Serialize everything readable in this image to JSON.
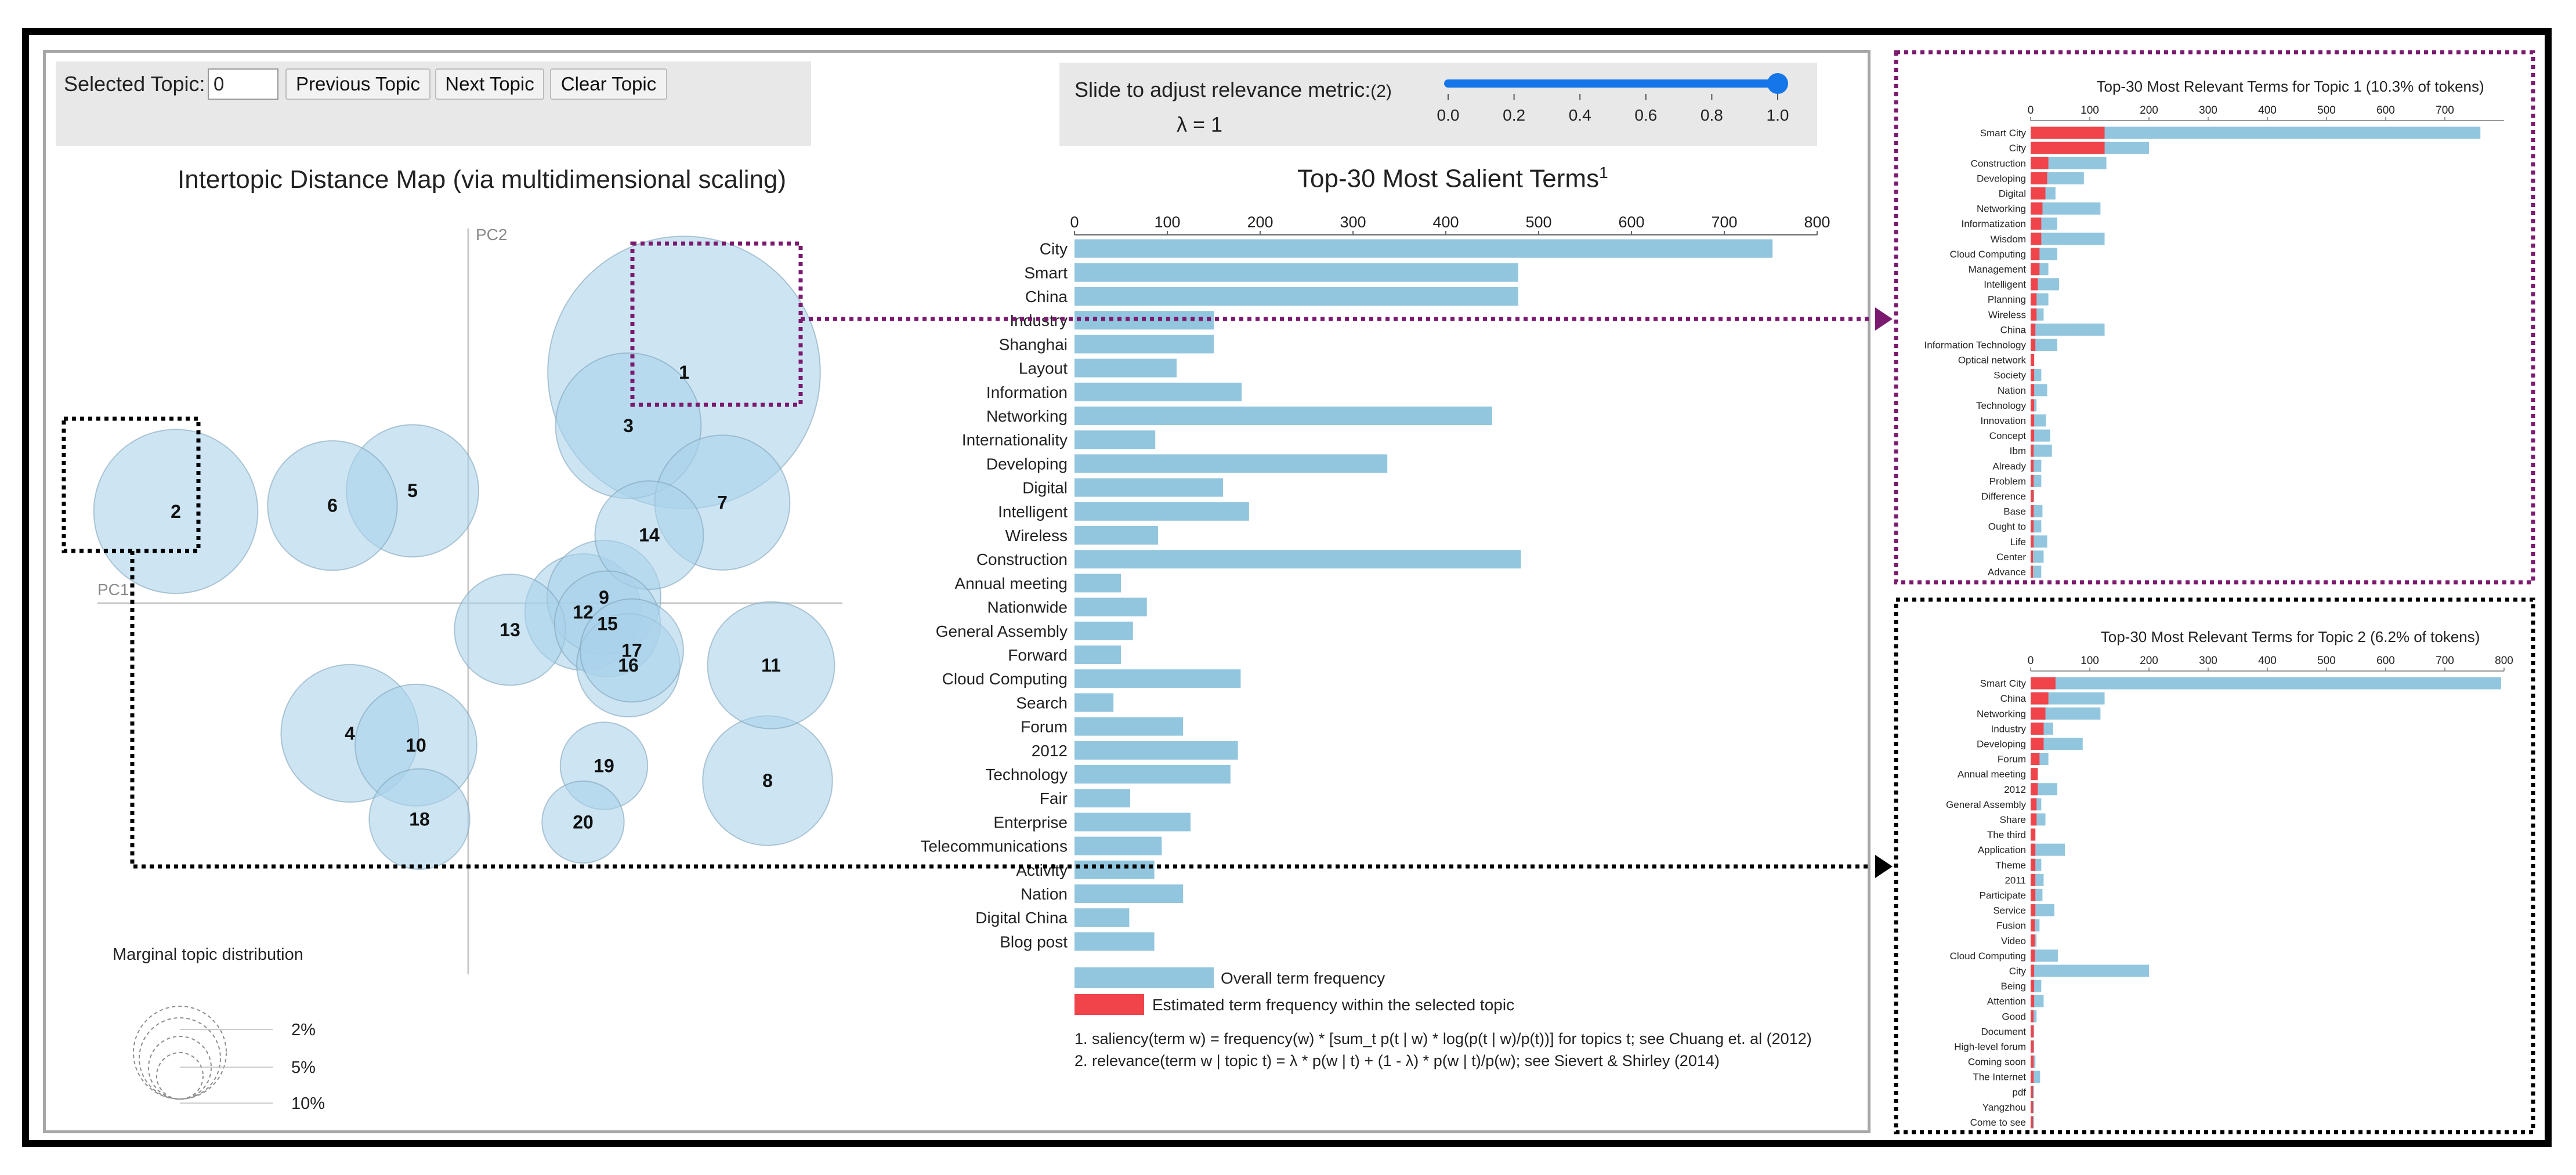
{
  "controls": {
    "selected_topic_label": "Selected Topic:",
    "selected_topic_value": "0",
    "prev_button": "Previous Topic",
    "next_button": "Next Topic",
    "clear_button": "Clear Topic",
    "slider_label": "Slide to adjust relevance metric:",
    "slider_footnote": "(2)",
    "lambda_text": "λ = 1",
    "slider_value": 1.0,
    "slider_ticks": [
      "0.0",
      "0.2",
      "0.4",
      "0.6",
      "0.8",
      "1.0"
    ]
  },
  "colors": {
    "overall": "#92c6df",
    "estimated": "#f0434a",
    "bubble_fill": "#a9d3ea",
    "bubble_stroke": "#7a9fb5",
    "slider": "#1476e8",
    "topic1_box": "#7b1a6f",
    "topic2_box": "#000000"
  },
  "chart_data": [
    {
      "type": "scatter",
      "title": "Intertopic Distance Map (via multidimensional scaling)",
      "xlabel": "PC1",
      "ylabel": "PC2",
      "size_legend": {
        "title": "Marginal topic distribution",
        "levels": [
          "2%",
          "5%",
          "10%"
        ]
      },
      "points": [
        {
          "topic": "1",
          "x": 0.62,
          "y": 0.78,
          "size": 10.3
        },
        {
          "topic": "2",
          "x": -0.84,
          "y": 0.31,
          "size": 6.2
        },
        {
          "topic": "3",
          "x": 0.46,
          "y": 0.6,
          "size": 5.5
        },
        {
          "topic": "4",
          "x": -0.34,
          "y": -0.44,
          "size": 5.2
        },
        {
          "topic": "5",
          "x": -0.16,
          "y": 0.38,
          "size": 5.0
        },
        {
          "topic": "6",
          "x": -0.39,
          "y": 0.33,
          "size": 4.9
        },
        {
          "topic": "7",
          "x": 0.73,
          "y": 0.34,
          "size": 5.1
        },
        {
          "topic": "8",
          "x": 0.86,
          "y": -0.6,
          "size": 4.9
        },
        {
          "topic": "9",
          "x": 0.39,
          "y": 0.02,
          "size": 4.3
        },
        {
          "topic": "10",
          "x": -0.15,
          "y": -0.48,
          "size": 4.6
        },
        {
          "topic": "11",
          "x": 0.87,
          "y": -0.21,
          "size": 4.8
        },
        {
          "topic": "12",
          "x": 0.33,
          "y": -0.03,
          "size": 4.4
        },
        {
          "topic": "13",
          "x": 0.12,
          "y": -0.09,
          "size": 4.2
        },
        {
          "topic": "14",
          "x": 0.52,
          "y": 0.23,
          "size": 4.1
        },
        {
          "topic": "15",
          "x": 0.4,
          "y": -0.07,
          "size": 4.0
        },
        {
          "topic": "16",
          "x": 0.46,
          "y": -0.21,
          "size": 3.9
        },
        {
          "topic": "17",
          "x": 0.47,
          "y": -0.16,
          "size": 3.9
        },
        {
          "topic": "18",
          "x": -0.14,
          "y": -0.73,
          "size": 3.8
        },
        {
          "topic": "19",
          "x": 0.39,
          "y": -0.55,
          "size": 3.3
        },
        {
          "topic": "20",
          "x": 0.33,
          "y": -0.74,
          "size": 3.1
        }
      ]
    },
    {
      "type": "bar",
      "orientation": "horizontal",
      "title": "Top-30 Most Salient Terms",
      "title_superscript": "1",
      "xlim": [
        0,
        800
      ],
      "xticks": [
        0,
        100,
        200,
        300,
        400,
        500,
        600,
        700,
        800
      ],
      "categories": [
        "City",
        "Smart",
        "China",
        "Industry",
        "Shanghai",
        "Layout",
        "Information",
        "Networking",
        "Internationality",
        "Developing",
        "Digital",
        "Intelligent",
        "Wireless",
        "Construction",
        "Annual meeting",
        "Nationwide",
        "General Assembly",
        "Forward",
        "Cloud Computing",
        "Search",
        "Forum",
        "2012",
        "Technology",
        "Fair",
        "Enterprise",
        "Telecommunications",
        "Activity",
        "Nation",
        "Digital China",
        "Blog post"
      ],
      "values": [
        752,
        478,
        478,
        150,
        150,
        110,
        180,
        450,
        87,
        337,
        160,
        188,
        90,
        481,
        50,
        78,
        63,
        50,
        179,
        42,
        117,
        176,
        168,
        60,
        125,
        94,
        86,
        117,
        59,
        86
      ],
      "legend": [
        "Overall term frequency",
        "Estimated term frequency within the selected topic"
      ],
      "footnotes": [
        "1. saliency(term w) = frequency(w) * [sum_t p(t | w) * log(p(t | w)/p(t))] for topics t; see Chuang et. al (2012)",
        "2. relevance(term w | topic t) = λ * p(w | t) + (1 - λ) * p(w | t)/p(w); see Sievert & Shirley (2014)"
      ]
    },
    {
      "type": "bar",
      "orientation": "horizontal",
      "title": "Top-30 Most Relevant Terms for Topic 1 (10.3% of tokens)",
      "xlim": [
        0,
        800
      ],
      "xticks": [
        0,
        100,
        200,
        300,
        400,
        500,
        600,
        700
      ],
      "categories": [
        "Smart City",
        "City",
        "Construction",
        "Developing",
        "Digital",
        "Networking",
        "Informatization",
        "Wisdom",
        "Cloud Computing",
        "Management",
        "Intelligent",
        "Planning",
        "Wireless",
        "China",
        "Information Technology",
        "Optical network",
        "Society",
        "Nation",
        "Technology",
        "Innovation",
        "Concept",
        "Ibm",
        "Already",
        "Problem",
        "Difference",
        "Base",
        "Ought to",
        "Life",
        "Center",
        "Advance"
      ],
      "series": [
        {
          "name": "Overall term frequency",
          "values": [
            760,
            200,
            128,
            90,
            42,
            118,
            45,
            125,
            45,
            30,
            48,
            30,
            22,
            125,
            45,
            6,
            18,
            28,
            10,
            26,
            33,
            36,
            18,
            18,
            6,
            20,
            18,
            28,
            22,
            18
          ]
        },
        {
          "name": "Estimated term frequency within the selected topic",
          "values": [
            125,
            125,
            30,
            28,
            25,
            20,
            18,
            18,
            15,
            15,
            12,
            10,
            10,
            8,
            8,
            6,
            6,
            6,
            6,
            6,
            6,
            5,
            5,
            5,
            5,
            5,
            5,
            5,
            4,
            4
          ]
        }
      ]
    },
    {
      "type": "bar",
      "orientation": "horizontal",
      "title": "Top-30 Most Relevant Terms for Topic 2 (6.2% of tokens)",
      "xlim": [
        0,
        800
      ],
      "xticks": [
        0,
        100,
        200,
        300,
        400,
        500,
        600,
        700,
        800
      ],
      "categories": [
        "Smart City",
        "China",
        "Networking",
        "Industry",
        "Developing",
        "Forum",
        "Annual meeting",
        "2012",
        "General Assembly",
        "Share",
        "The third",
        "Application",
        "Theme",
        "2011",
        "Participate",
        "Service",
        "Fusion",
        "Video",
        "Cloud Computing",
        "City",
        "Being",
        "Attention",
        "Good",
        "Document",
        "High-level forum",
        "Coming soon",
        "The Internet",
        "pdf",
        "Yangzhou",
        "Come to see"
      ],
      "series": [
        {
          "name": "Overall term frequency",
          "values": [
            795,
            125,
            118,
            38,
            88,
            30,
            12,
            45,
            18,
            25,
            8,
            58,
            18,
            22,
            20,
            40,
            15,
            10,
            46,
            200,
            18,
            22,
            10,
            6,
            6,
            8,
            16,
            6,
            6,
            6
          ]
        },
        {
          "name": "Estimated term frequency within the selected topic",
          "values": [
            42,
            30,
            25,
            22,
            22,
            15,
            12,
            12,
            10,
            10,
            8,
            8,
            8,
            8,
            8,
            8,
            7,
            7,
            7,
            6,
            6,
            6,
            5,
            5,
            5,
            5,
            5,
            4,
            4,
            4
          ]
        }
      ]
    }
  ]
}
